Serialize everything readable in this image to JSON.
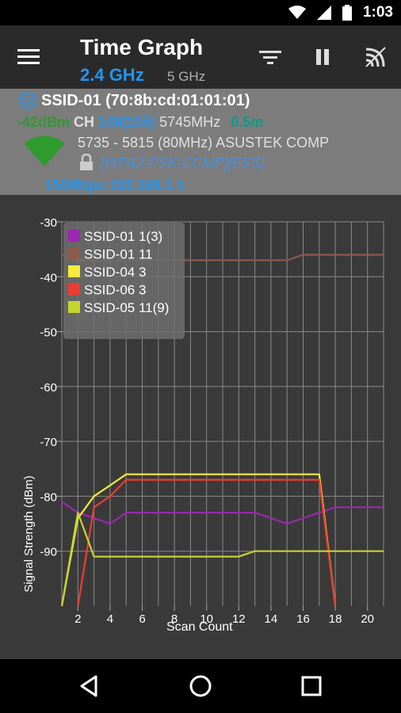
{
  "status_bar": {
    "time": "1:03",
    "icons": [
      "wifi-icon",
      "cell-signal-icon",
      "battery-icon"
    ]
  },
  "app_bar": {
    "title": "Time Graph",
    "band_active": "2.4 GHz",
    "band_inactive": "5 GHz",
    "actions": [
      "filter-icon",
      "pause-icon",
      "wifi-scan-icon"
    ]
  },
  "network": {
    "ssid": "SSID-01 (70:8b:cd:01:01:01)",
    "rssi": "-42dBm",
    "ch_label": "CH",
    "channel": "149(155)",
    "freq": "5745MHz",
    "distance": "0.5m",
    "range": "5735 - 5815 (80MHz)",
    "vendor": "ASUSTEK COMP",
    "security": "[WPA2-PSK-CCMP][ESS]",
    "rate_ip": "150Mbps 192.168.1.1"
  },
  "colors": {
    "accent": "#2196f3",
    "series_purple": "#9c27b0",
    "series_brown": "#8d5a4a",
    "series_yellow": "#f5eb3b",
    "series_red": "#f03c32",
    "series_lime": "#c6d42e"
  },
  "chart_data": {
    "type": "line",
    "xlabel": "Scan Count",
    "ylabel": "Signal Strength (dBm)",
    "xlim": [
      1,
      21
    ],
    "ylim": [
      -100,
      -30
    ],
    "xticks": [
      2,
      4,
      6,
      8,
      10,
      12,
      14,
      16,
      18,
      20
    ],
    "yticks": [
      -30,
      -40,
      -50,
      -60,
      -70,
      -80,
      -90
    ],
    "grid": true,
    "legend_position": "top-left",
    "series": [
      {
        "name": "SSID-01 1(3)",
        "color": "#9c27b0",
        "points": [
          [
            1,
            -81
          ],
          [
            2,
            -83
          ],
          [
            3,
            -84
          ],
          [
            4,
            -85
          ],
          [
            5,
            -83
          ],
          [
            6,
            -83
          ],
          [
            7,
            -83
          ],
          [
            8,
            -83
          ],
          [
            9,
            -83
          ],
          [
            10,
            -83
          ],
          [
            11,
            -83
          ],
          [
            12,
            -83
          ],
          [
            13,
            -83
          ],
          [
            14,
            -84
          ],
          [
            15,
            -85
          ],
          [
            16,
            -84
          ],
          [
            17,
            -83
          ],
          [
            18,
            -82
          ],
          [
            19,
            -82
          ],
          [
            20,
            -82
          ],
          [
            21,
            -82
          ]
        ]
      },
      {
        "name": "SSID-01 11",
        "color": "#8d5a4a",
        "points": [
          [
            1,
            -36
          ],
          [
            2,
            -37
          ],
          [
            3,
            -37
          ],
          [
            4,
            -37
          ],
          [
            5,
            -37
          ],
          [
            6,
            -37
          ],
          [
            7,
            -37
          ],
          [
            8,
            -37
          ],
          [
            9,
            -37
          ],
          [
            10,
            -37
          ],
          [
            11,
            -37
          ],
          [
            12,
            -37
          ],
          [
            13,
            -37
          ],
          [
            14,
            -37
          ],
          [
            15,
            -37
          ],
          [
            16,
            -36
          ],
          [
            17,
            -36
          ],
          [
            18,
            -36
          ],
          [
            19,
            -36
          ],
          [
            20,
            -36
          ],
          [
            21,
            -36
          ]
        ]
      },
      {
        "name": "SSID-04 3",
        "color": "#f5eb3b",
        "points": [
          [
            1,
            -100
          ],
          [
            2,
            -84
          ],
          [
            3,
            -80
          ],
          [
            4,
            -78
          ],
          [
            5,
            -76
          ],
          [
            6,
            -76
          ],
          [
            7,
            -76
          ],
          [
            8,
            -76
          ],
          [
            9,
            -76
          ],
          [
            10,
            -76
          ],
          [
            11,
            -76
          ],
          [
            12,
            -76
          ],
          [
            13,
            -76
          ],
          [
            14,
            -76
          ],
          [
            15,
            -76
          ],
          [
            16,
            -76
          ],
          [
            17,
            -76
          ],
          [
            18,
            -100
          ]
        ]
      },
      {
        "name": "SSID-06 3",
        "color": "#f03c32",
        "points": [
          [
            2,
            -100
          ],
          [
            3,
            -82
          ],
          [
            4,
            -80
          ],
          [
            5,
            -77
          ],
          [
            6,
            -77
          ],
          [
            7,
            -77
          ],
          [
            8,
            -77
          ],
          [
            9,
            -77
          ],
          [
            10,
            -77
          ],
          [
            11,
            -77
          ],
          [
            12,
            -77
          ],
          [
            13,
            -77
          ],
          [
            14,
            -77
          ],
          [
            15,
            -77
          ],
          [
            16,
            -77
          ],
          [
            17,
            -77
          ],
          [
            18,
            -100
          ]
        ]
      },
      {
        "name": "SSID-05 11(9)",
        "color": "#c6d42e",
        "points": [
          [
            1,
            -100
          ],
          [
            2,
            -83
          ],
          [
            3,
            -91
          ],
          [
            4,
            -91
          ],
          [
            5,
            -91
          ],
          [
            6,
            -91
          ],
          [
            7,
            -91
          ],
          [
            8,
            -91
          ],
          [
            9,
            -91
          ],
          [
            10,
            -91
          ],
          [
            11,
            -91
          ],
          [
            12,
            -91
          ],
          [
            13,
            -90
          ],
          [
            14,
            -90
          ],
          [
            15,
            -90
          ],
          [
            16,
            -90
          ],
          [
            17,
            -90
          ],
          [
            18,
            -90
          ],
          [
            19,
            -90
          ],
          [
            20,
            -90
          ],
          [
            21,
            -90
          ]
        ]
      }
    ]
  },
  "nav": {
    "buttons": [
      "back-icon",
      "home-icon",
      "recents-icon"
    ]
  }
}
